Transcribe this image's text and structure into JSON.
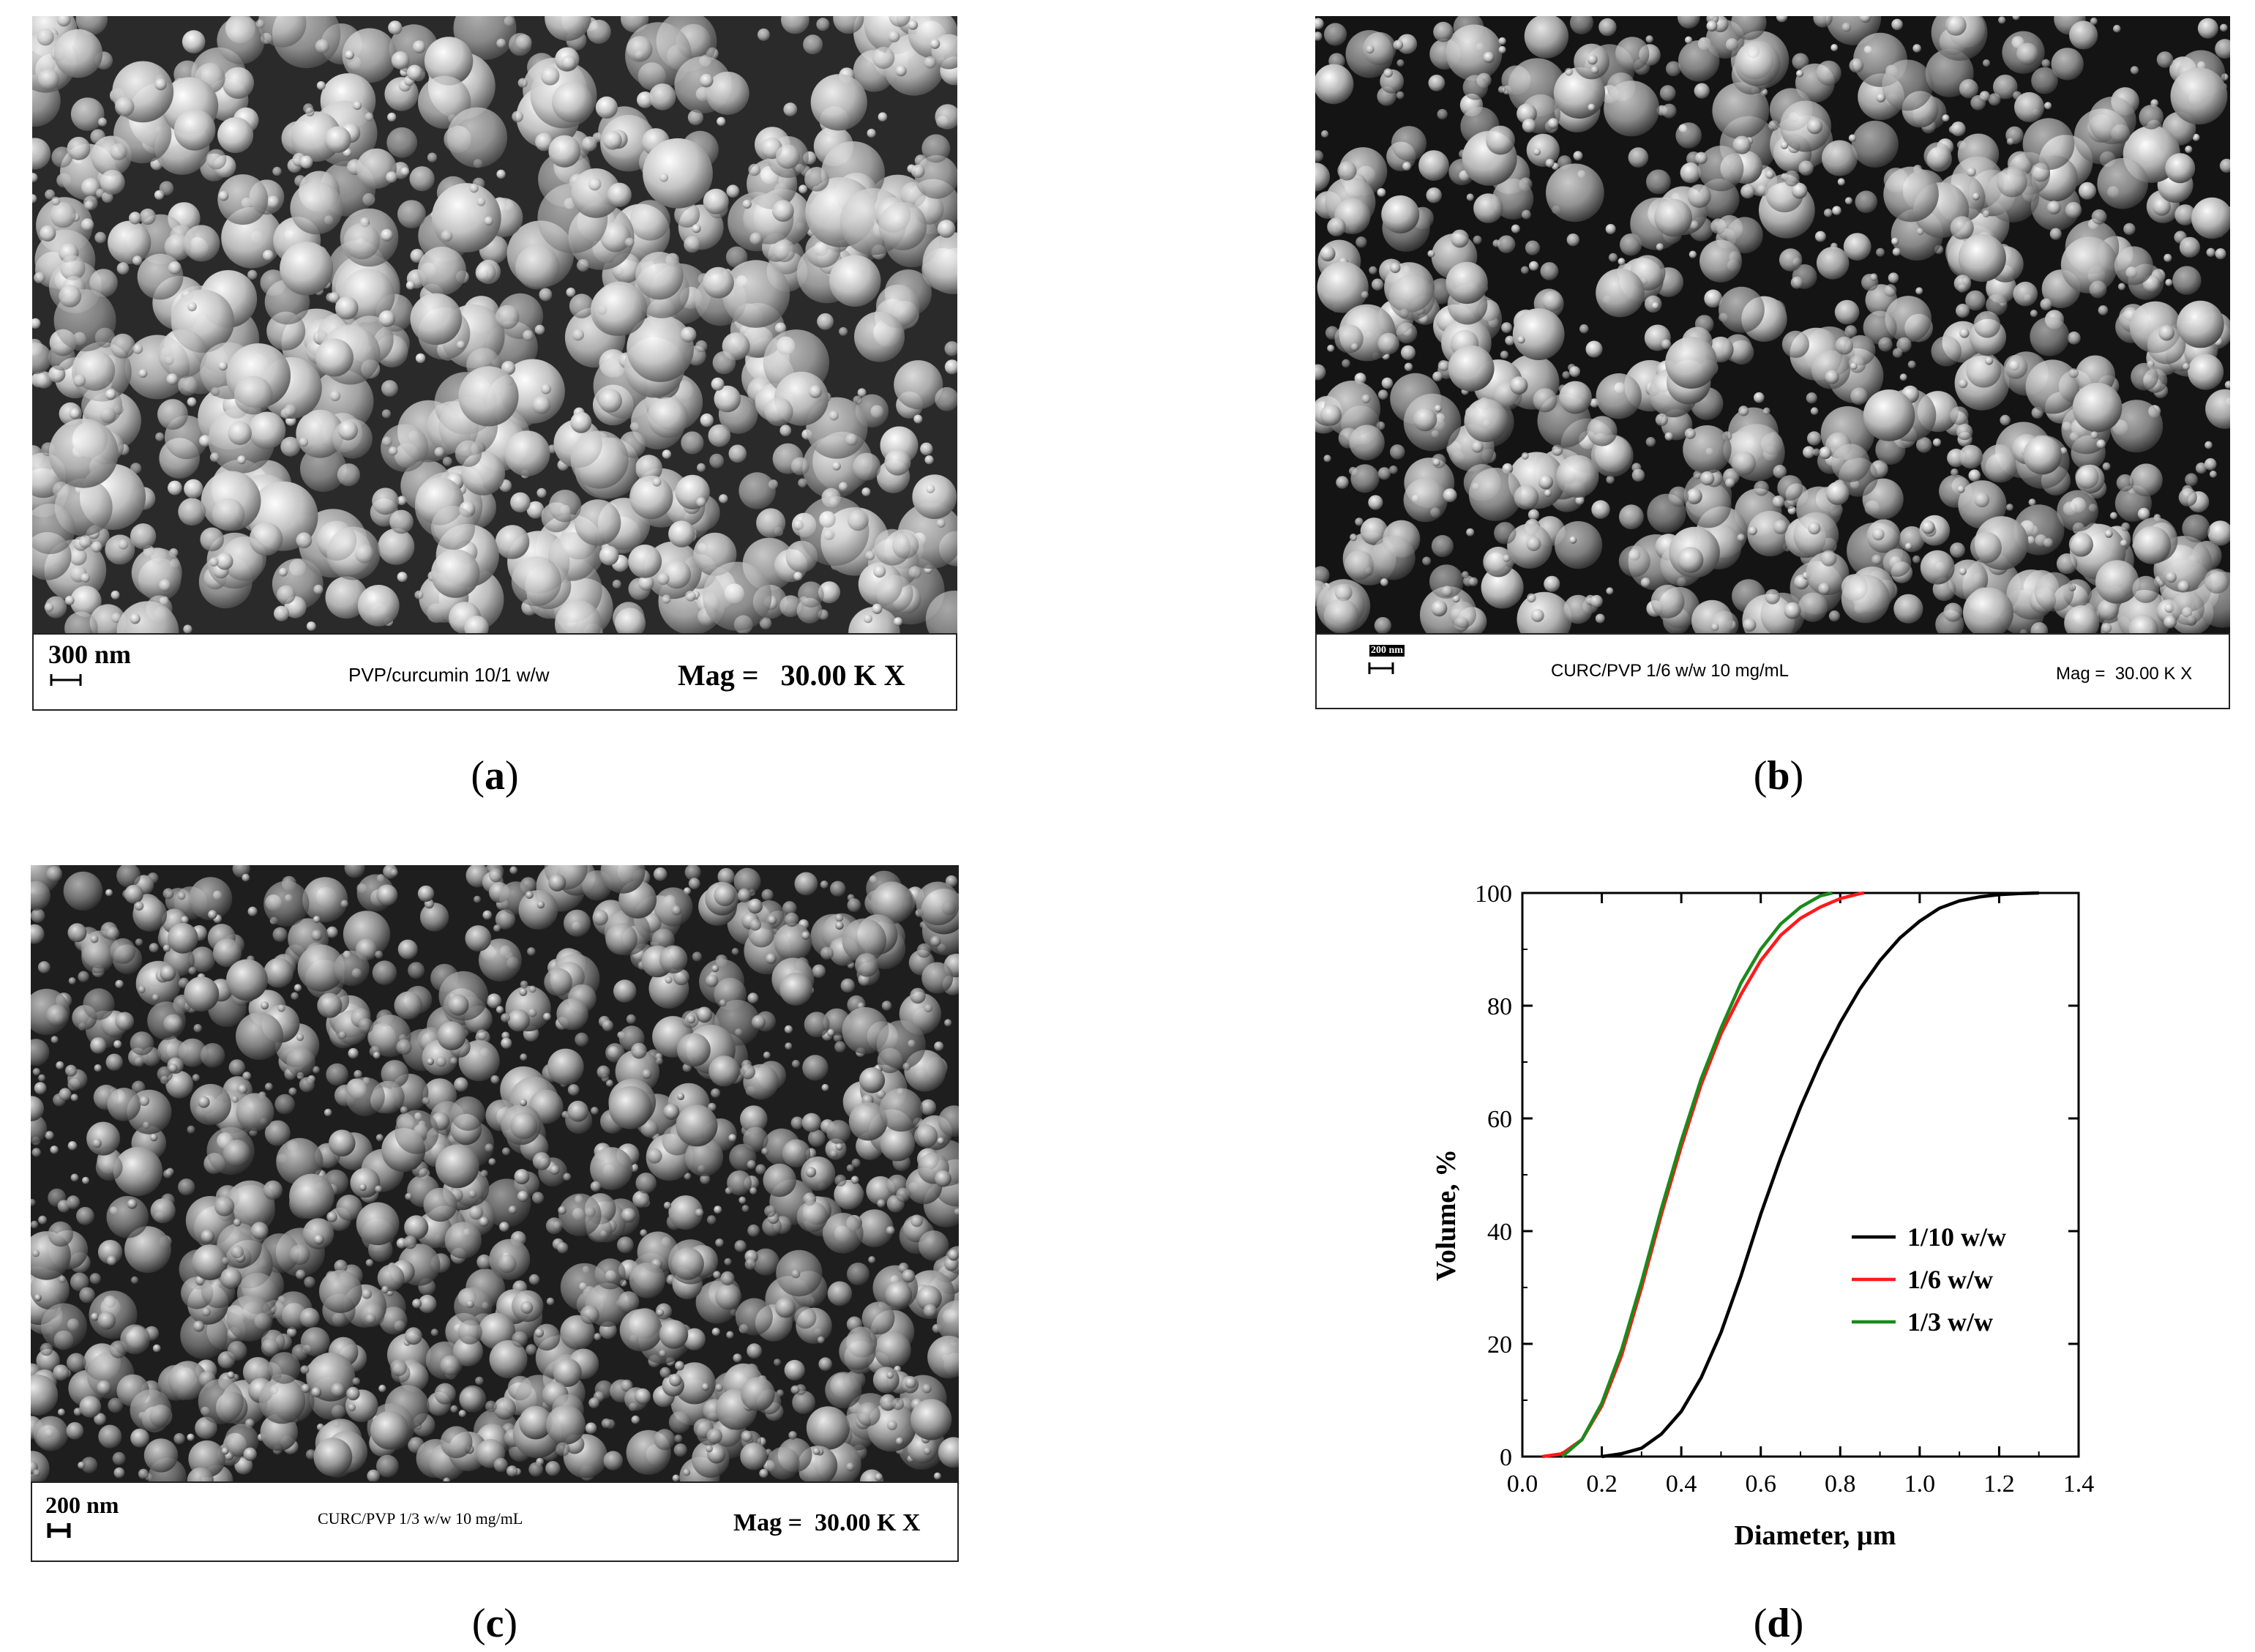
{
  "panels": {
    "a": {
      "caption_open": "(",
      "caption_letter": "a",
      "caption_close": ")",
      "scale_label": "300 nm",
      "sample_label": "PVP/curcumin 10/1 w/w",
      "mag_label": "Mag =   30.00 K X"
    },
    "b": {
      "caption_open": "(",
      "caption_letter": "b",
      "caption_close": ")",
      "scale_label": "200 nm",
      "sample_label": "CURC/PVP 1/6 w/w 10 mg/mL",
      "mag_label": "Mag =  30.00 K X"
    },
    "c": {
      "caption_open": "(",
      "caption_letter": "c",
      "caption_close": ")",
      "scale_label": "200 nm",
      "sample_label": "CURC/PVP 1/3 w/w 10 mg/mL",
      "mag_label": "Mag =  30.00 K X"
    },
    "d": {
      "caption_open": "(",
      "caption_letter": "d",
      "caption_close": ")"
    }
  },
  "chart_data": {
    "type": "line",
    "title": "",
    "xlabel": "Diameter, µm",
    "ylabel": "Volume, %",
    "xlim": [
      0.0,
      1.4
    ],
    "ylim": [
      0,
      100
    ],
    "xticks": [
      "0.0",
      "0.2",
      "0.4",
      "0.6",
      "0.8",
      "1.0",
      "1.2",
      "1.4"
    ],
    "yticks": [
      "0",
      "20",
      "40",
      "60",
      "80",
      "100"
    ],
    "legend_position": "bottom-right",
    "grid": false,
    "series": [
      {
        "name": "1/10 w/w",
        "color": "#000000",
        "x": [
          0.2,
          0.25,
          0.3,
          0.35,
          0.4,
          0.45,
          0.5,
          0.55,
          0.6,
          0.65,
          0.7,
          0.75,
          0.8,
          0.85,
          0.9,
          0.95,
          1.0,
          1.05,
          1.1,
          1.15,
          1.2,
          1.25,
          1.3
        ],
        "y": [
          0,
          0.5,
          1.5,
          4,
          8,
          14,
          22,
          32,
          43,
          53,
          62,
          70,
          77,
          83,
          88,
          92,
          95,
          97.3,
          98.6,
          99.3,
          99.7,
          99.9,
          100
        ]
      },
      {
        "name": "1/6 w/w",
        "color": "#ff1a1a",
        "x": [
          0.05,
          0.1,
          0.15,
          0.2,
          0.25,
          0.3,
          0.35,
          0.4,
          0.45,
          0.5,
          0.55,
          0.6,
          0.65,
          0.7,
          0.75,
          0.8,
          0.85,
          0.86
        ],
        "y": [
          0,
          0.5,
          3,
          9,
          18,
          30,
          43,
          55,
          66,
          75,
          82,
          88,
          92.5,
          95.5,
          97.5,
          99,
          99.9,
          100
        ]
      },
      {
        "name": "1/3 w/w",
        "color": "#1a8a1a",
        "x": [
          0.1,
          0.15,
          0.2,
          0.25,
          0.3,
          0.35,
          0.4,
          0.45,
          0.5,
          0.55,
          0.6,
          0.65,
          0.7,
          0.75,
          0.78
        ],
        "y": [
          0,
          3,
          9.5,
          19,
          31,
          44,
          56,
          67,
          76,
          84,
          90,
          94.5,
          97.5,
          99.5,
          100
        ]
      }
    ]
  }
}
